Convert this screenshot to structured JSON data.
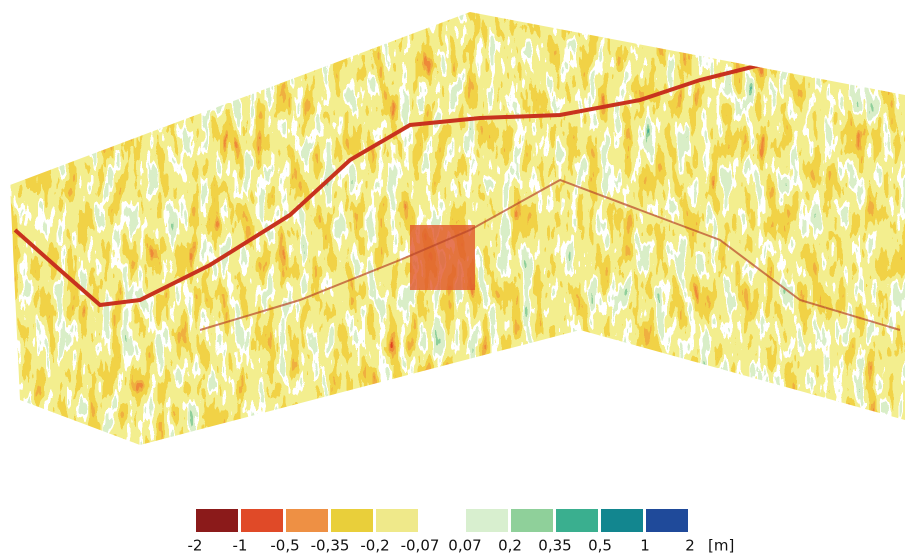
{
  "legend": {
    "colors": [
      "#8b1a1a",
      "#e04a28",
      "#ee9044",
      "#e9cf3a",
      "#efe98a",
      "#ffffff",
      "#d8efcf",
      "#8fd09a",
      "#3aaf8f",
      "#12868f",
      "#1f4a9a"
    ],
    "breaks": [
      "-2",
      "-1",
      "-0,5",
      "-0,35",
      "-0,2",
      "-0,07",
      "0,07",
      "0,2",
      "0,35",
      "0,5",
      "1",
      "2"
    ],
    "unit": "[m]"
  }
}
